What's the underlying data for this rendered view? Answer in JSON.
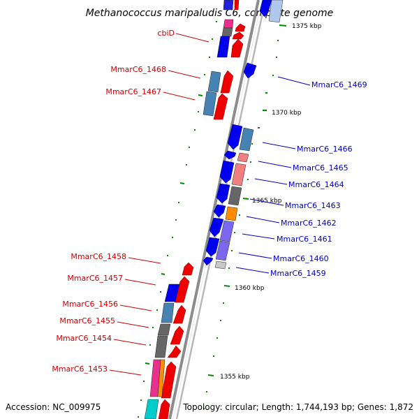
{
  "title": "Methanococcus maripaludis C6, complete genome",
  "accession": "Accession: NC_009975",
  "topology": "Topology: circular; Length: 1,744,193 bp; Genes: 1,872",
  "kbp_labels": [
    {
      "text": "1375 kbp"
    },
    {
      "text": "1370 kbp"
    },
    {
      "text": "1365 kbp"
    },
    {
      "text": "1360 kbp"
    },
    {
      "text": "1355 kbp"
    }
  ],
  "left_labels": [
    {
      "text": "cbiD"
    },
    {
      "text": "MmarC6_1468"
    },
    {
      "text": "MmarC6_1467"
    },
    {
      "text": "MmarC6_1458"
    },
    {
      "text": "MmarC6_1457"
    },
    {
      "text": "MmarC6_1456"
    },
    {
      "text": "MmarC6_1455"
    },
    {
      "text": "MmarC6_1454"
    },
    {
      "text": "MmarC6_1453"
    }
  ],
  "right_labels": [
    {
      "text": "MmarC6_1469"
    },
    {
      "text": "MmarC6_1466"
    },
    {
      "text": "MmarC6_1465"
    },
    {
      "text": "MmarC6_1464"
    },
    {
      "text": "MmarC6_1463"
    },
    {
      "text": "MmarC6_1462"
    },
    {
      "text": "MmarC6_1461"
    },
    {
      "text": "MmarC6_1460"
    },
    {
      "text": "MmarC6_1459"
    }
  ],
  "colors": {
    "forward_strand": "#ee0000",
    "reverse_strand": "#0000ee",
    "left_label": "#cc0000",
    "right_label": "#0000bb",
    "tick": "#007700",
    "backbone": "#888888"
  }
}
